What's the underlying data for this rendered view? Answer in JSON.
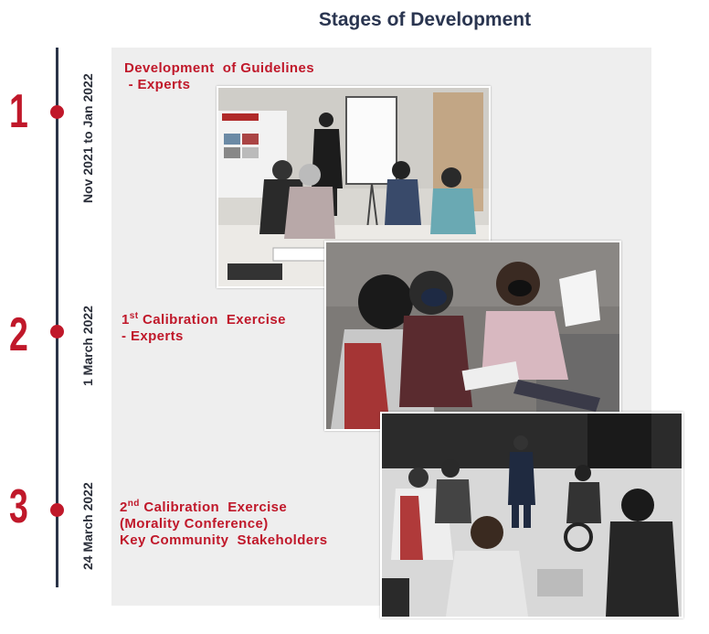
{
  "title": "Stages of Development",
  "stages": [
    {
      "number": "1",
      "date": "Nov 2021 to Jan 2022",
      "line1": "Development  of Guidelines",
      "line2": " - Experts"
    },
    {
      "number": "2",
      "date": "1 March 2022",
      "line1_prefix": "1",
      "line1_sup": "st",
      "line1_rest": " Calibration  Exercise",
      "line2": "- Experts"
    },
    {
      "number": "3",
      "date": "24 March 2022",
      "line1_prefix": "2",
      "line1_sup": "nd",
      "line1_rest": " Calibration  Exercise",
      "line2": "(Morality Conference)",
      "line3": "Key Community  Stakeholders"
    }
  ],
  "photos": [
    {
      "name": "workshop-guidelines-photo"
    },
    {
      "name": "first-calibration-photo"
    },
    {
      "name": "second-calibration-photo"
    }
  ],
  "colors": {
    "accent": "#c0182a",
    "title": "#2a3550",
    "timeline": "#2b3448",
    "panel": "#eeeeee"
  }
}
